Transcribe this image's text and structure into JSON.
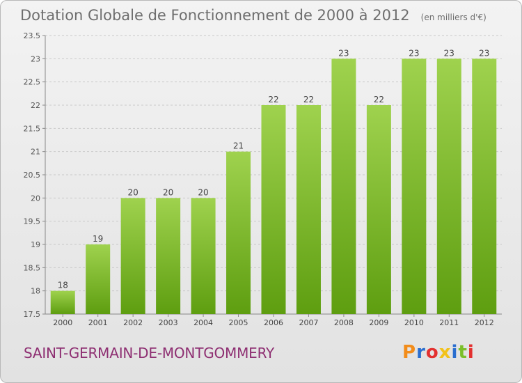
{
  "header": {
    "title": "Dotation Globale de Fonctionnement de 2000 à 2012",
    "unit": "(en milliers d'€)"
  },
  "footer": {
    "commune": "SAINT-GERMAIN-DE-MONTGOMMERY",
    "logo_letters": [
      "P",
      "r",
      "o",
      "x",
      "i",
      "t",
      "i"
    ],
    "logo_colors": [
      "#f28c1a",
      "#2a6ecf",
      "#e3302f",
      "#f2c21a",
      "#2a6ecf",
      "#7bbf2a",
      "#e3302f"
    ]
  },
  "chart_data": {
    "type": "bar",
    "categories": [
      "2000",
      "2001",
      "2002",
      "2003",
      "2004",
      "2005",
      "2006",
      "2007",
      "2008",
      "2009",
      "2010",
      "2011",
      "2012"
    ],
    "values": [
      18,
      19,
      20,
      20,
      20,
      21,
      22,
      22,
      23,
      22,
      23,
      23,
      23
    ],
    "value_labels": [
      "18",
      "19",
      "20",
      "20",
      "20",
      "21",
      "22",
      "22",
      "23",
      "22",
      "23",
      "23",
      "23"
    ],
    "ylim": [
      17.5,
      23.5
    ],
    "yticks": [
      17.5,
      18,
      18.5,
      19,
      19.5,
      20,
      20.5,
      21,
      21.5,
      22,
      22.5,
      23,
      23.5
    ],
    "ytick_labels": [
      "17.5",
      "18",
      "18.5",
      "19",
      "19.5",
      "20",
      "20.5",
      "21",
      "21.5",
      "22",
      "22.5",
      "23",
      "23.5"
    ],
    "grid": true,
    "bar_color_top": "#9fd24e",
    "bar_color_bottom": "#5e9e10"
  }
}
